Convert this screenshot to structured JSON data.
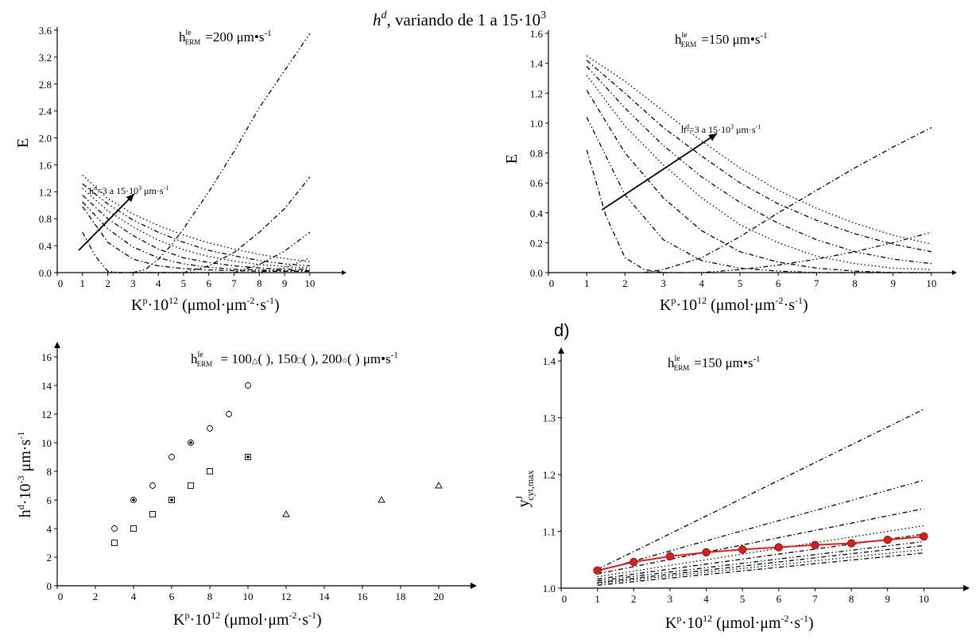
{
  "header": {
    "line": "h^d, variando de 1 a 15·10^3",
    "sym": "h",
    "sup": "d",
    "rest": ",  variando de 1 a 15·10",
    "exp": "3"
  },
  "chart_data": [
    {
      "id": "a",
      "type": "line",
      "annotation": {
        "sym": "h",
        "sup": "le",
        "sub": "ERM",
        "text": "=200 μm•s",
        "exp": "-1"
      },
      "arrow_label": "h^d=3 a 15·10^3 μm·s^-1",
      "arrow_label_parts": {
        "sym": "h",
        "sup": "d",
        "text": "=3 a 15·10",
        "exp": "3",
        "unit": " μm·s",
        "uexp": "-1"
      },
      "xlabel": {
        "base": "K",
        "sup": "p",
        "mid": "·10",
        "exp": "12",
        "unit": " (μmol·μm",
        "uexp": "-2",
        "tail": "·s",
        "texp": "-1",
        "close": ")"
      },
      "ylabel": "E",
      "xlim": [
        0,
        11.2
      ],
      "ylim": [
        0,
        3.6
      ],
      "xticks": [
        0,
        1,
        2,
        3,
        4,
        5,
        6,
        7,
        8,
        9,
        10
      ],
      "yticks": [
        0.0,
        0.4,
        0.8,
        1.2,
        1.6,
        2.0,
        2.4,
        2.8,
        3.2,
        3.6
      ],
      "ytick_labels": [
        "0.0",
        "0.4",
        "0.8",
        "1.2",
        "1.6",
        "2.0",
        "2.4",
        "2.8",
        "3.2",
        "3.6"
      ],
      "series": [
        {
          "x": [
            1,
            2,
            3,
            4,
            5,
            6,
            7,
            8,
            9,
            10
          ],
          "y": [
            0.98,
            0.45,
            0.2,
            0.1,
            0.06,
            0.04,
            0.03,
            0.02,
            0.02,
            0.02
          ],
          "dash": "6,3,1.5,3"
        },
        {
          "x": [
            1,
            2,
            3,
            4,
            5,
            6,
            7,
            8,
            9,
            10
          ],
          "y": [
            1.05,
            0.65,
            0.38,
            0.22,
            0.13,
            0.08,
            0.05,
            0.04,
            0.03,
            0.03
          ],
          "dash": "6,3,1.5,3,1.5,3"
        },
        {
          "x": [
            1,
            2,
            3,
            4,
            5,
            6,
            7,
            8,
            9,
            10
          ],
          "y": [
            1.15,
            0.8,
            0.55,
            0.35,
            0.22,
            0.15,
            0.1,
            0.07,
            0.05,
            0.05
          ],
          "dash": "6,3,1.5,3"
        },
        {
          "x": [
            1,
            2,
            3,
            4,
            5,
            6,
            7,
            8,
            9,
            10
          ],
          "y": [
            1.25,
            0.92,
            0.68,
            0.48,
            0.34,
            0.24,
            0.17,
            0.12,
            0.09,
            0.07
          ],
          "dash": "1.5,3"
        },
        {
          "x": [
            1,
            2,
            3,
            4,
            5,
            6,
            7,
            8,
            9,
            10
          ],
          "y": [
            1.32,
            1.02,
            0.78,
            0.6,
            0.45,
            0.33,
            0.25,
            0.18,
            0.13,
            0.1
          ],
          "dash": "6,3,1.5,3,1.5,3"
        },
        {
          "x": [
            1,
            2,
            3,
            4,
            5,
            6,
            7,
            8,
            9,
            10
          ],
          "y": [
            1.45,
            1.1,
            0.87,
            0.7,
            0.56,
            0.44,
            0.35,
            0.27,
            0.21,
            0.16
          ],
          "dash": "1.5,3"
        },
        {
          "x": [
            1,
            1.5,
            2,
            2.5,
            3,
            3.5,
            4,
            4.5,
            5,
            6,
            7,
            8,
            9,
            10
          ],
          "y": [
            0.6,
            0.25,
            0.02,
            0,
            0,
            0.05,
            0.2,
            0.4,
            0.65,
            1.2,
            1.8,
            2.45,
            3.0,
            3.55
          ],
          "dash": "6,3,1.5,3,1.5,3"
        },
        {
          "x": [
            2,
            3,
            4,
            5,
            6,
            7,
            8,
            9,
            10
          ],
          "y": [
            0,
            0,
            0,
            0,
            0.1,
            0.3,
            0.6,
            0.95,
            1.42
          ],
          "dash": "6,3,1.5,3"
        },
        {
          "x": [
            3,
            4,
            5,
            6,
            7,
            8,
            9,
            10
          ],
          "y": [
            0,
            0,
            0,
            0,
            0,
            0.12,
            0.32,
            0.6
          ],
          "dash": "6,3,1.5,3,1.5,3"
        },
        {
          "x": [
            4,
            5,
            6,
            7,
            8,
            9,
            10
          ],
          "y": [
            0,
            0,
            0,
            0,
            0,
            0.07,
            0.22
          ],
          "dash": "1.5,3"
        }
      ],
      "arrow": {
        "from": [
          0.85,
          0.33
        ],
        "to": [
          3.05,
          1.17
        ]
      }
    },
    {
      "id": "b",
      "type": "line",
      "annotation": {
        "sym": "h",
        "sup": "le",
        "sub": "ERM",
        "text": "=150 μm•s",
        "exp": "-1"
      },
      "arrow_label_parts": {
        "sym": "h",
        "sup": "d",
        "text": "=3 a 15·10",
        "exp": "3",
        "unit": " μm·s",
        "uexp": "-1"
      },
      "xlabel": {
        "base": "K",
        "sup": "p",
        "mid": "·10",
        "exp": "12",
        "unit": " (μmol·μm",
        "uexp": "-2",
        "tail": "·s",
        "texp": "-1",
        "close": ")"
      },
      "ylabel": "E",
      "xlim": [
        0,
        10.5
      ],
      "ylim": [
        0,
        1.6
      ],
      "xticks": [
        0,
        1,
        2,
        3,
        4,
        5,
        6,
        7,
        8,
        9,
        10
      ],
      "yticks": [
        0.0,
        0.2,
        0.4,
        0.6,
        0.8,
        1.0,
        1.2,
        1.4,
        1.6
      ],
      "ytick_labels": [
        "0.0",
        "0.2",
        "0.4",
        "0.6",
        "0.8",
        "1.0",
        "1.2",
        "1.4",
        "1.6"
      ],
      "series": [
        {
          "x": [
            1,
            1.5,
            2,
            2.5,
            3
          ],
          "y": [
            0.82,
            0.38,
            0.1,
            0.02,
            0
          ],
          "dash": "6,3,1.5,3"
        },
        {
          "x": [
            1,
            2,
            3,
            4,
            5,
            6,
            7,
            8,
            9,
            10
          ],
          "y": [
            1.04,
            0.52,
            0.22,
            0.08,
            0.03,
            0.01,
            0,
            0,
            0,
            0
          ],
          "dash": "6,3,1.5,3,1.5,3"
        },
        {
          "x": [
            1,
            2,
            3,
            4,
            5,
            6,
            7,
            8,
            9,
            10
          ],
          "y": [
            1.22,
            0.8,
            0.5,
            0.28,
            0.14,
            0.07,
            0.03,
            0.01,
            0,
            0
          ],
          "dash": "6,3,1.5,3"
        },
        {
          "x": [
            1,
            2,
            3,
            4,
            5,
            6,
            7,
            8,
            9,
            10
          ],
          "y": [
            1.32,
            0.98,
            0.72,
            0.5,
            0.32,
            0.2,
            0.11,
            0.06,
            0.03,
            0.02
          ],
          "dash": "1.5,3"
        },
        {
          "x": [
            1,
            2,
            3,
            4,
            5,
            6,
            7,
            8,
            9,
            10
          ],
          "y": [
            1.38,
            1.1,
            0.85,
            0.64,
            0.47,
            0.33,
            0.22,
            0.14,
            0.09,
            0.06
          ],
          "dash": "6,3,1.5,3,1.5,3"
        },
        {
          "x": [
            1,
            2,
            3,
            4,
            5,
            6,
            7,
            8,
            9,
            10
          ],
          "y": [
            1.42,
            1.2,
            0.97,
            0.78,
            0.6,
            0.46,
            0.35,
            0.26,
            0.19,
            0.14
          ],
          "dash": "6,3,1.5,3"
        },
        {
          "x": [
            1,
            2,
            3,
            4,
            5,
            6,
            7,
            8,
            9,
            10
          ],
          "y": [
            1.45,
            1.28,
            1.08,
            0.88,
            0.7,
            0.55,
            0.43,
            0.33,
            0.25,
            0.19
          ],
          "dash": "1.5,3"
        },
        {
          "x": [
            2.5,
            3,
            4,
            5,
            6,
            7,
            8,
            9,
            10
          ],
          "y": [
            0,
            0.02,
            0.1,
            0.24,
            0.4,
            0.55,
            0.7,
            0.84,
            0.97
          ],
          "dash": "6,3,1.5,3"
        },
        {
          "x": [
            3,
            4,
            5,
            6,
            7,
            8,
            9,
            10
          ],
          "y": [
            0,
            0,
            0.02,
            0.05,
            0.09,
            0.14,
            0.2,
            0.27
          ],
          "dash": "6,3,1.5,3,1.5,3"
        }
      ],
      "arrow": {
        "from": [
          1.4,
          0.42
        ],
        "to": [
          4.4,
          0.93
        ]
      }
    },
    {
      "id": "c",
      "type": "scatter",
      "annotation": {
        "sym": "h",
        "sup": "le",
        "sub": "ERM",
        "text": " = 100",
        "mk1": "△",
        "p1": "(  ), 150",
        "mk2": "□",
        "p2": "(  ), 200",
        "mk3": "○",
        "p3": "(  ) μm•s",
        "exp": "-1"
      },
      "xlabel": {
        "base": "K",
        "sup": "p",
        "mid": "·10",
        "exp": "12",
        "unit": " (μmol·μm",
        "uexp": "-2",
        "tail": "·s",
        "texp": "-1",
        "close": ")"
      },
      "ylabel": {
        "base": "h",
        "sup": "d",
        "mid": "·10",
        "exp": "-3",
        "unit": " μm·s",
        "uexp": "-1"
      },
      "xlim": [
        0,
        21.5
      ],
      "ylim": [
        0,
        16.5
      ],
      "xticks": [
        0,
        2,
        4,
        6,
        8,
        10,
        12,
        14,
        16,
        18,
        20
      ],
      "yticks": [
        0,
        2,
        4,
        6,
        8,
        10,
        12,
        14,
        16
      ],
      "ytick_labels": [
        "0",
        "2",
        "4",
        "6",
        "8",
        "10",
        "12",
        "14",
        "16"
      ],
      "series": [
        {
          "name": "100",
          "marker": "triangle",
          "x": [
            12,
            17,
            20
          ],
          "y": [
            5,
            6,
            7
          ]
        },
        {
          "name": "150",
          "marker": "square",
          "x": [
            3,
            4,
            5,
            6,
            7,
            8,
            10
          ],
          "y": [
            3,
            4,
            5,
            6,
            7,
            8,
            9
          ]
        },
        {
          "name": "200",
          "marker": "circle",
          "x": [
            3,
            4,
            5,
            6,
            7,
            8,
            9,
            10
          ],
          "y": [
            4,
            6,
            7,
            9,
            10,
            11,
            12,
            14
          ]
        }
      ],
      "overlap_points": [
        [
          4,
          6
        ],
        [
          6,
          6
        ],
        [
          7,
          10
        ],
        [
          10,
          9
        ]
      ]
    },
    {
      "id": "d",
      "type": "line",
      "panel_label": "d)",
      "annotation": {
        "sym": "h",
        "sup": "le",
        "sub": "ERM",
        "text": "=150 μm•s",
        "exp": "-1"
      },
      "xlabel": {
        "base": "K",
        "sup": "p",
        "mid": "·10",
        "exp": "12",
        "unit": " (μmol·μm",
        "uexp": "-2",
        "tail": "·s",
        "texp": "-1",
        "close": ")"
      },
      "ylabel": {
        "base": "y",
        "sup": "J",
        "sub": "cyt,max"
      },
      "xlim": [
        0,
        11
      ],
      "ylim": [
        1.0,
        1.41
      ],
      "xticks": [
        0,
        1,
        2,
        3,
        4,
        5,
        6,
        7,
        8,
        9,
        10
      ],
      "yticks": [
        1.0,
        1.1,
        1.2,
        1.3,
        1.4
      ],
      "ytick_labels": [
        "1.0",
        "1.1",
        "1.2",
        "1.3",
        "1.4"
      ],
      "series": [
        {
          "x": [
            1,
            10
          ],
          "y": [
            1.033,
            1.315
          ],
          "dash": "6,3,1.5,3"
        },
        {
          "x": [
            1,
            10
          ],
          "y": [
            1.03,
            1.19
          ],
          "dash": "6,3,1.5,3,1.5,3"
        },
        {
          "x": [
            1,
            10
          ],
          "y": [
            1.025,
            1.14
          ],
          "dash": "6,3,1.5,3"
        },
        {
          "x": [
            1,
            10
          ],
          "y": [
            1.02,
            1.11
          ],
          "dash": "1.5,3"
        },
        {
          "x": [
            1,
            10
          ],
          "y": [
            1.016,
            1.095
          ],
          "dash": "6,3,1.5,3"
        },
        {
          "x": [
            1,
            10
          ],
          "y": [
            1.013,
            1.082
          ],
          "dash": "6,3,1.5,3,1.5,3"
        },
        {
          "x": [
            1,
            10
          ],
          "y": [
            1.01,
            1.075
          ],
          "dash": "6,3,1.5,3"
        },
        {
          "x": [
            1,
            10
          ],
          "y": [
            1.008,
            1.068
          ],
          "dash": "1.5,3"
        },
        {
          "x": [
            1,
            10
          ],
          "y": [
            1.005,
            1.062
          ],
          "dash": "6,3,1.5,3"
        }
      ],
      "highlight": {
        "x": [
          1,
          2,
          3,
          4,
          5,
          6,
          7,
          8,
          9,
          10
        ],
        "y": [
          1.031,
          1.046,
          1.056,
          1.063,
          1.068,
          1.072,
          1.076,
          1.079,
          1.085,
          1.091
        ],
        "color": "#d61f1f"
      }
    }
  ]
}
